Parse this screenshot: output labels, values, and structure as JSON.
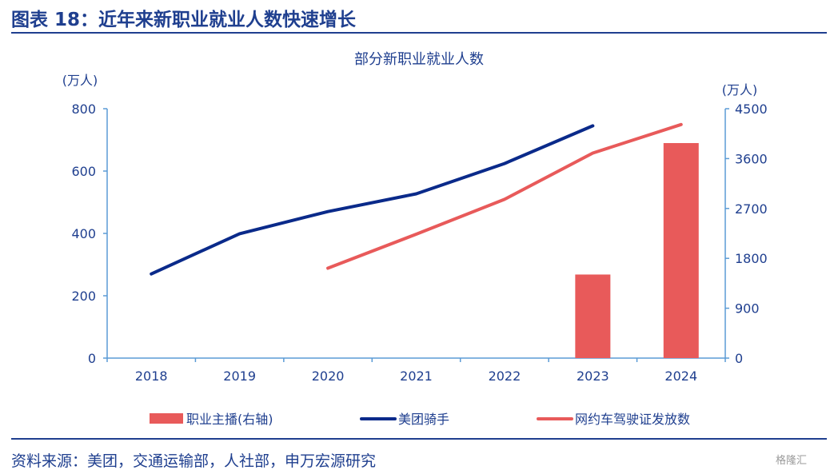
{
  "figure": {
    "title": "图表 18：近年来新职业就业人数快速增长",
    "source": "资料来源：美团，交通运输部，人社部，申万宏源研究",
    "watermark": "格隆汇"
  },
  "colors": {
    "navy": "#0a2a8a",
    "red": "#e85a5a",
    "axis": "#5b9bd5",
    "text": "#1f3f8f"
  },
  "chart_data": {
    "type": "bar+line",
    "title": "部分新职业就业人数",
    "categories": [
      "2018",
      "2019",
      "2020",
      "2021",
      "2022",
      "2023",
      "2024"
    ],
    "y_left": {
      "unit": "(万人)",
      "ylim": [
        0,
        800
      ],
      "ticks": [
        0,
        200,
        400,
        600,
        800
      ]
    },
    "y_right": {
      "unit": "(万人)",
      "ylim": [
        0,
        4500
      ],
      "ticks": [
        0,
        900,
        1800,
        2700,
        3600,
        4500
      ]
    },
    "grid": false,
    "legend_position": "bottom",
    "series": [
      {
        "name": "职业主播(右轴)",
        "type": "bar",
        "axis": "right",
        "color": "#e85a5a",
        "values": [
          null,
          null,
          null,
          null,
          null,
          1508,
          3880
        ]
      },
      {
        "name": "美团骑手",
        "type": "line",
        "axis": "left",
        "color": "#0a2a8a",
        "values": [
          270,
          399,
          470,
          527,
          624,
          745,
          null
        ]
      },
      {
        "name": "网约车驾驶证发放数",
        "type": "line",
        "axis": "right",
        "color": "#e85a5a",
        "values": [
          null,
          null,
          1623,
          2235,
          2864,
          3700,
          4215
        ]
      }
    ]
  }
}
